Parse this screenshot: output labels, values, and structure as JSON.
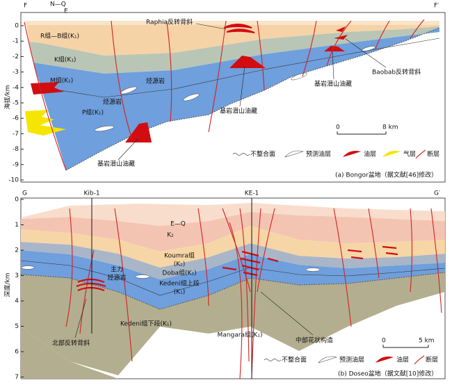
{
  "panels": [
    {
      "section_ends": [
        "F",
        "F′"
      ],
      "surface_units": [
        "N—Q",
        "E"
      ],
      "y_axis": {
        "label": "海拔/km",
        "ticks": [
          0,
          -1,
          -2,
          -3,
          -4,
          -5,
          -6,
          -7,
          -8,
          -9,
          -10
        ]
      },
      "units": [
        "R组—B组(K₁)",
        "K组(K₁)",
        "M组(K₁)",
        "P组(K₁)",
        "烃源岩",
        "烃源岩"
      ],
      "annotations": [
        "Raphia反转背斜",
        "基岩潜山油藏",
        "基岩潜山油藏",
        "基岩潜山油藏",
        "Baobab反转背斜"
      ],
      "scale_bar": [
        "0",
        "8 km"
      ],
      "legend": [
        "不整合面",
        "预测油层",
        "油层",
        "气层",
        "断层"
      ],
      "caption": "(a) Bongor盆地（据文献[46]修改）"
    },
    {
      "section_ends": [
        "G",
        "G′"
      ],
      "wells": [
        "Kib-1",
        "KE-1"
      ],
      "y_axis": {
        "label": "深度/km",
        "ticks": [
          0,
          1,
          2,
          3,
          4,
          5,
          6,
          7
        ]
      },
      "units": [
        "E—Q",
        "K₂",
        "Koumra组",
        "(K₂)",
        "Doba组(K₁)",
        "主力",
        "烃源岩",
        "Kedeni组上段",
        "(K₁)",
        "Kedeni组下段(K₁)",
        "Mangara组(K₁)"
      ],
      "annotations": [
        "北部反转背斜",
        "中部花状构造"
      ],
      "scale_bar": [
        "0",
        "5 km"
      ],
      "legend": [
        "不整合面",
        "预测油层",
        "油层",
        "断层"
      ],
      "caption": "(b) Doseo盆地（据文献[10]修改）"
    }
  ]
}
